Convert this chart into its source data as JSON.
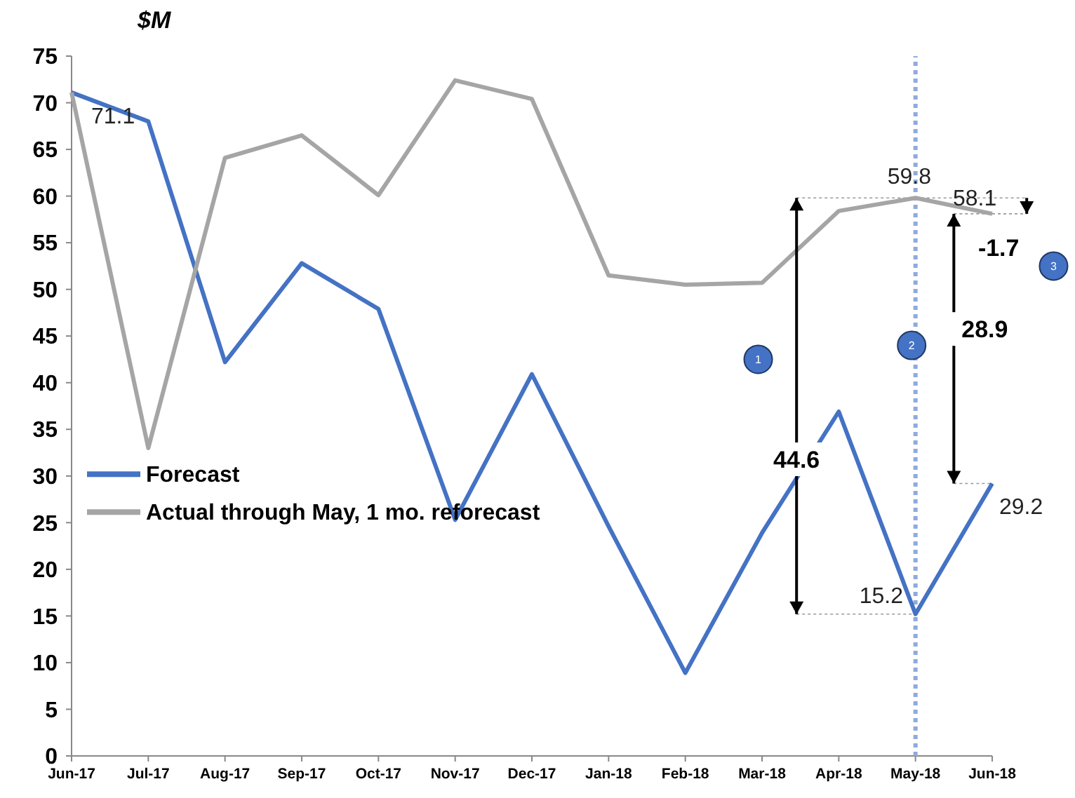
{
  "chart_data": {
    "type": "line",
    "ylabel": "$M",
    "categories": [
      "Jun-17",
      "Jul-17",
      "Aug-17",
      "Sep-17",
      "Oct-17",
      "Nov-17",
      "Dec-17",
      "Jan-18",
      "Feb-18",
      "Mar-18",
      "Apr-18",
      "May-18",
      "Jun-18"
    ],
    "series": [
      {
        "name": "Forecast",
        "color": "#4472c4",
        "values": [
          71.1,
          68.0,
          42.2,
          52.8,
          47.9,
          25.3,
          40.9,
          24.6,
          8.9,
          23.9,
          36.9,
          15.2,
          29.2
        ]
      },
      {
        "name": "Actual through May, 1 mo. reforecast",
        "color": "#a5a5a5",
        "values": [
          71.1,
          33.0,
          64.1,
          66.5,
          60.1,
          72.4,
          70.4,
          51.5,
          50.5,
          50.7,
          58.4,
          59.8,
          58.1
        ]
      }
    ],
    "ylim": [
      0,
      75
    ],
    "yticks": [
      0,
      5,
      10,
      15,
      20,
      25,
      30,
      35,
      40,
      45,
      50,
      55,
      60,
      65,
      70,
      75
    ],
    "grid": false,
    "legend": "left",
    "marker": "none",
    "line_style": "solid",
    "ref_lines": [
      {
        "axis": "x",
        "value": "May-18",
        "color": "#8faadc",
        "line_style": "dotted"
      }
    ],
    "annotations": [
      {
        "text": "71.1",
        "x": "Jun-17",
        "y": 71.1
      },
      {
        "text": "59.8",
        "x": "May-18",
        "y": 59.8
      },
      {
        "text": "58.1",
        "x": "Jun-18",
        "y": 58.1
      },
      {
        "text": "15.2",
        "x": "May-18",
        "y": 15.2
      },
      {
        "text": "29.2",
        "x": "Jun-18",
        "y": 29.2
      },
      "44.6",
      "28.9",
      "-1.7",
      "1",
      "2",
      "3"
    ]
  }
}
